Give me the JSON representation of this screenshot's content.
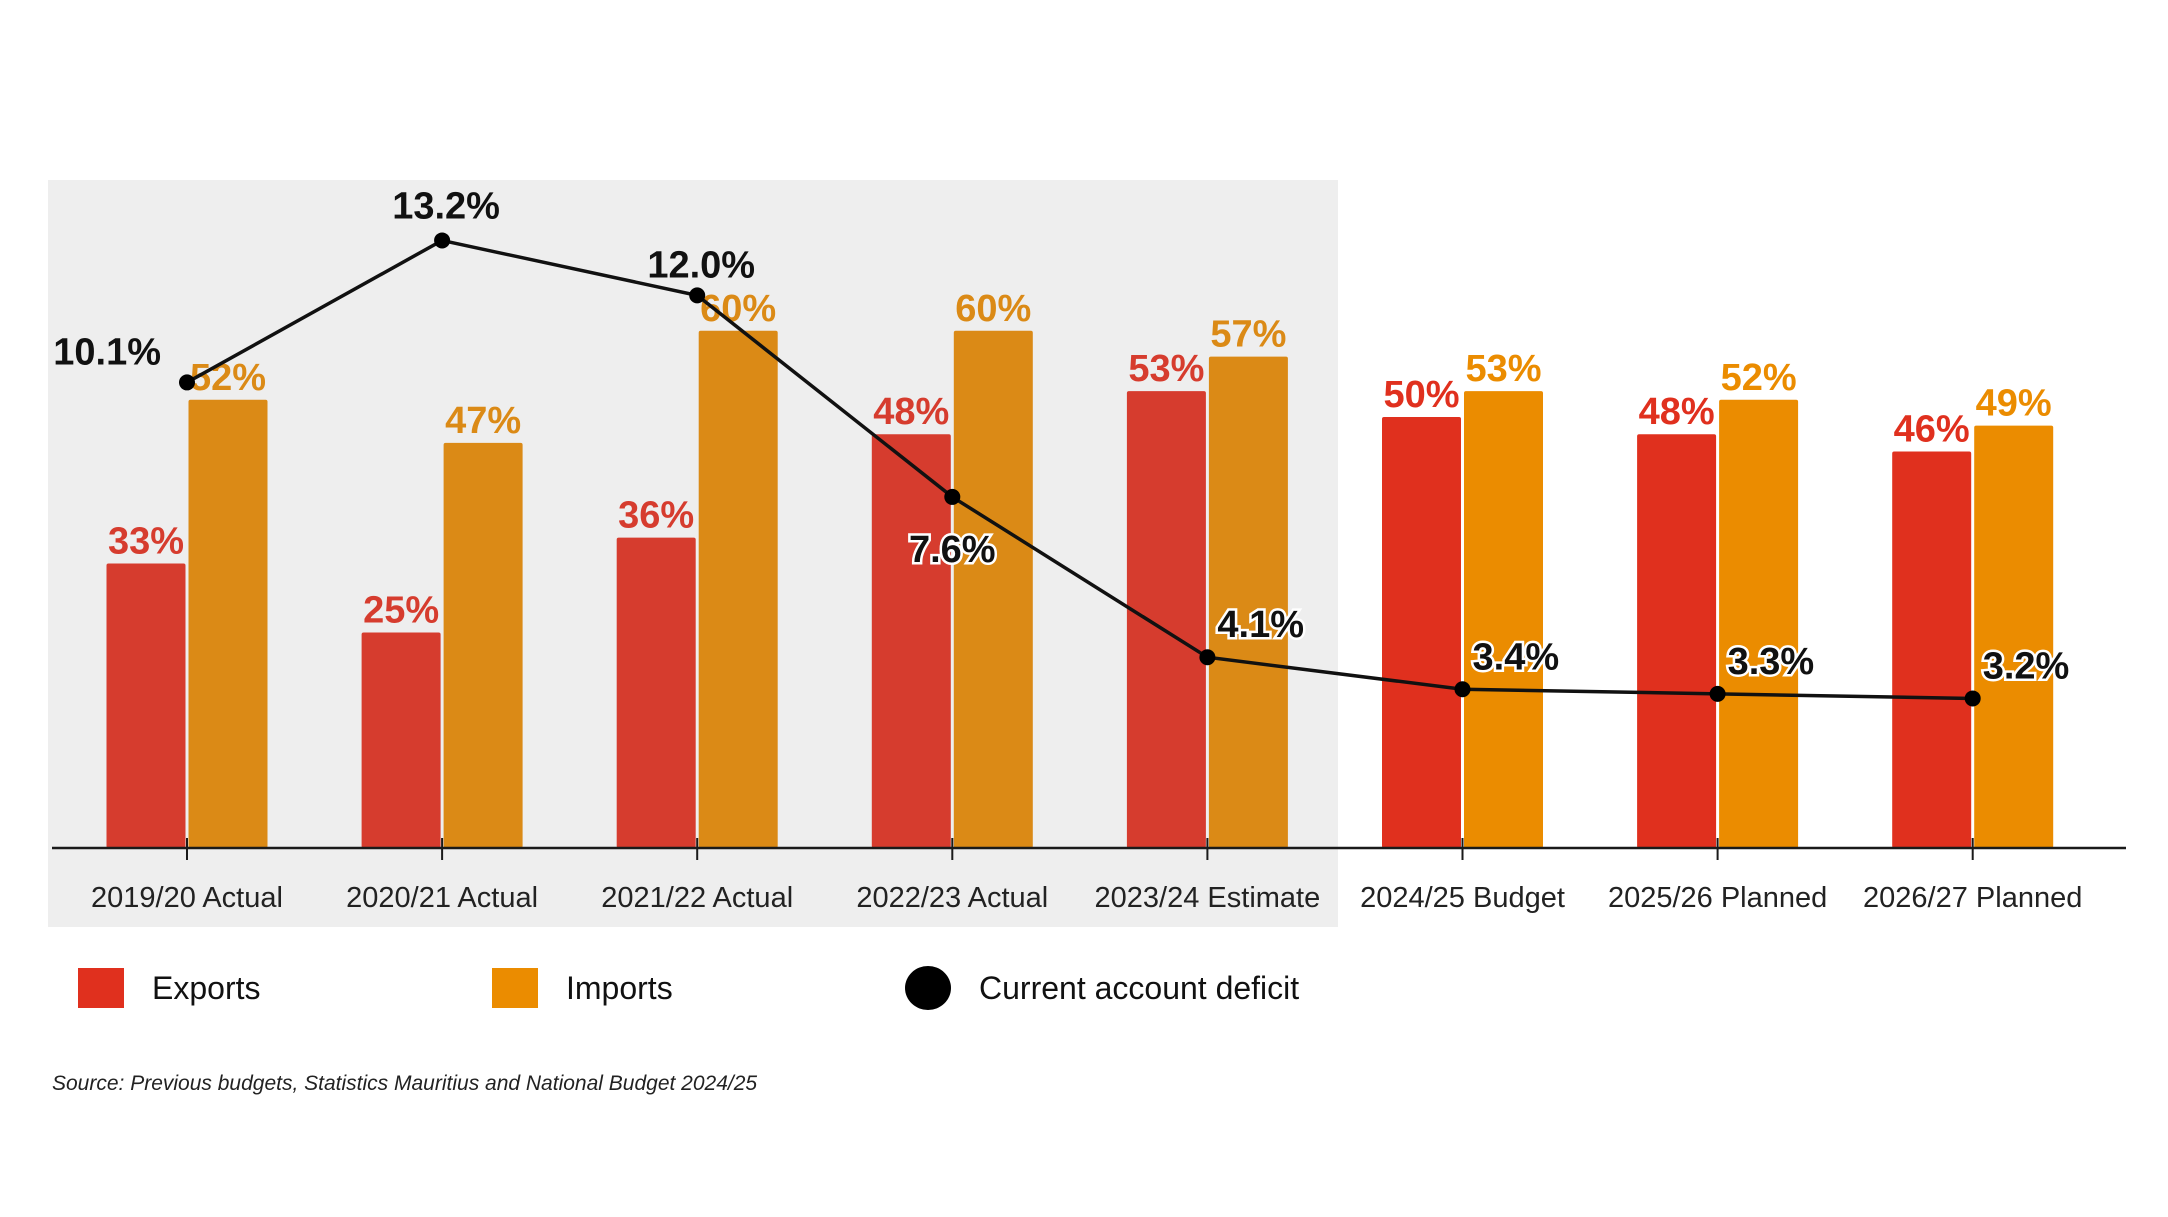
{
  "chart_data": {
    "type": "bar",
    "title": "",
    "xlabel": "",
    "ylabel": "",
    "categories": [
      "2019/20 Actual",
      "2020/21 Actual",
      "2021/22 Actual",
      "2022/23 Actual",
      "2023/24 Estimate",
      "2024/25 Budget",
      "2025/26 Planned",
      "2026/27 Planned"
    ],
    "shaded_categories": [
      "2019/20 Actual",
      "2020/21 Actual",
      "2021/22 Actual",
      "2022/23 Actual",
      "2023/24 Estimate"
    ],
    "series": [
      {
        "name": "Exports",
        "kind": "bar",
        "color": "#E0301E",
        "shaded_color": "#D63C2E",
        "values": [
          33,
          25,
          36,
          48,
          53,
          50,
          48,
          46
        ],
        "labels": [
          "33%",
          "25%",
          "36%",
          "48%",
          "53%",
          "50%",
          "48%",
          "46%"
        ]
      },
      {
        "name": "Imports",
        "kind": "bar",
        "color": "#EB8C00",
        "shaded_color": "#DB8A16",
        "values": [
          52,
          47,
          60,
          60,
          57,
          53,
          52,
          49
        ],
        "labels": [
          "52%",
          "47%",
          "60%",
          "60%",
          "57%",
          "53%",
          "52%",
          "49%"
        ]
      },
      {
        "name": "Current account deficit",
        "kind": "line",
        "color": "#000000",
        "values": [
          10.1,
          13.2,
          12.0,
          7.6,
          4.1,
          3.4,
          3.3,
          3.2
        ],
        "labels": [
          "10.1%",
          "13.2%",
          "12.0%",
          "7.6%",
          "4.1%",
          "3.4%",
          "3.3%",
          "3.2%"
        ]
      }
    ],
    "bar_ylim": [
      0,
      100
    ],
    "line_ylim": [
      0,
      18.5
    ],
    "grid": false,
    "legend_position": "bottom-left",
    "source": "Source: Previous budgets, Statistics Mauritius and National Budget 2024/25"
  },
  "legend": {
    "items": [
      {
        "label": "Exports",
        "color": "#E0301E",
        "shape": "square"
      },
      {
        "label": "Imports",
        "color": "#EB8C00",
        "shape": "square"
      },
      {
        "label": "Current account deficit",
        "color": "#000000",
        "shape": "circle"
      }
    ]
  },
  "colors": {
    "shade_background": "#EEEEEE",
    "axis": "#1A1A1A",
    "line_label": "#111111"
  }
}
